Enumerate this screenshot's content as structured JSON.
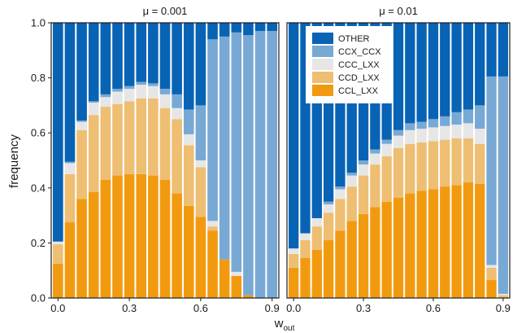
{
  "chart_data": {
    "type": "bar",
    "stacked": true,
    "ylabel": "frequency",
    "xlabel_base": "w",
    "xlabel_sub": "out",
    "ylim": [
      0,
      1
    ],
    "y_ticks": [
      "0.0",
      "0.2",
      "0.4",
      "0.6",
      "0.8",
      "1.0"
    ],
    "x_ticks": [
      "0.0",
      "0.3",
      "0.6",
      "0.9"
    ],
    "x": [
      0.0,
      0.05,
      0.1,
      0.15,
      0.2,
      0.25,
      0.3,
      0.35,
      0.4,
      0.45,
      0.5,
      0.55,
      0.6,
      0.65,
      0.7,
      0.75,
      0.8,
      0.85,
      0.9
    ],
    "legend_position": "top-left of right panel",
    "colors": {
      "OTHER": "#0863b5",
      "CCX_CCX": "#78a9d4",
      "CCC_LXX": "#e6e6e6",
      "CCD_LXX": "#eebe73",
      "CCL_LXX": "#f29a0f"
    },
    "stack_order": [
      "CCL_LXX",
      "CCD_LXX",
      "CCC_LXX",
      "CCX_CCX",
      "OTHER"
    ],
    "legend": [
      "OTHER",
      "CCX_CCX",
      "CCC_LXX",
      "CCD_LXX",
      "CCL_LXX"
    ],
    "panels": [
      {
        "title": "μ = 0.001",
        "series": [
          {
            "name": "CCL_LXX",
            "values": [
              0.125,
              0.275,
              0.36,
              0.385,
              0.43,
              0.445,
              0.45,
              0.45,
              0.445,
              0.43,
              0.38,
              0.335,
              0.295,
              0.245,
              0.14,
              0.08,
              0.01,
              0,
              0
            ]
          },
          {
            "name": "CCD_LXX",
            "values": [
              0.07,
              0.175,
              0.25,
              0.28,
              0.265,
              0.26,
              0.265,
              0.275,
              0.28,
              0.26,
              0.27,
              0.22,
              0.18,
              0.015,
              0,
              0,
              0,
              0,
              0
            ]
          },
          {
            "name": "CCC_LXX",
            "values": [
              0.01,
              0.04,
              0.03,
              0.045,
              0.035,
              0.045,
              0.045,
              0.05,
              0.045,
              0.05,
              0.04,
              0.04,
              0.025,
              0.02,
              0,
              0.015,
              0,
              0,
              0
            ]
          },
          {
            "name": "CCX_CCX",
            "values": [
              0,
              0.005,
              0.005,
              0.005,
              0.01,
              0.01,
              0.01,
              0.01,
              0.01,
              0.02,
              0.05,
              0.09,
              0.2,
              0.66,
              0.81,
              0.87,
              0.945,
              0.97,
              0.97
            ]
          },
          {
            "name": "OTHER",
            "values": [
              0.795,
              0.505,
              0.355,
              0.285,
              0.26,
              0.24,
              0.23,
              0.215,
              0.22,
              0.24,
              0.26,
              0.315,
              0.3,
              0.06,
              0.05,
              0.035,
              0.045,
              0.03,
              0.03
            ]
          }
        ]
      },
      {
        "title": "μ = 0.01",
        "series": [
          {
            "name": "CCL_LXX",
            "values": [
              0.11,
              0.145,
              0.175,
              0.21,
              0.245,
              0.28,
              0.305,
              0.33,
              0.35,
              0.365,
              0.38,
              0.39,
              0.395,
              0.405,
              0.41,
              0.42,
              0.415,
              0.065,
              0
            ]
          },
          {
            "name": "CCD_LXX",
            "values": [
              0.05,
              0.065,
              0.085,
              0.1,
              0.115,
              0.125,
              0.14,
              0.155,
              0.165,
              0.18,
              0.18,
              0.175,
              0.175,
              0.17,
              0.17,
              0.16,
              0.145,
              0.045,
              0.01
            ]
          },
          {
            "name": "CCC_LXX",
            "values": [
              0.02,
              0.025,
              0.03,
              0.03,
              0.035,
              0.04,
              0.04,
              0.04,
              0.045,
              0.045,
              0.05,
              0.05,
              0.05,
              0.05,
              0.05,
              0.055,
              0.055,
              0.01,
              0.005
            ]
          },
          {
            "name": "CCX_CCX",
            "values": [
              0,
              0,
              0,
              0.01,
              0.01,
              0.01,
              0.015,
              0.015,
              0.015,
              0.02,
              0.025,
              0.025,
              0.03,
              0.035,
              0.045,
              0.05,
              0.085,
              0.685,
              0.79
            ]
          },
          {
            "name": "OTHER",
            "values": [
              0.82,
              0.765,
              0.71,
              0.65,
              0.595,
              0.545,
              0.5,
              0.46,
              0.425,
              0.39,
              0.365,
              0.36,
              0.35,
              0.34,
              0.325,
              0.315,
              0.3,
              0.195,
              0.195
            ]
          }
        ]
      }
    ]
  }
}
